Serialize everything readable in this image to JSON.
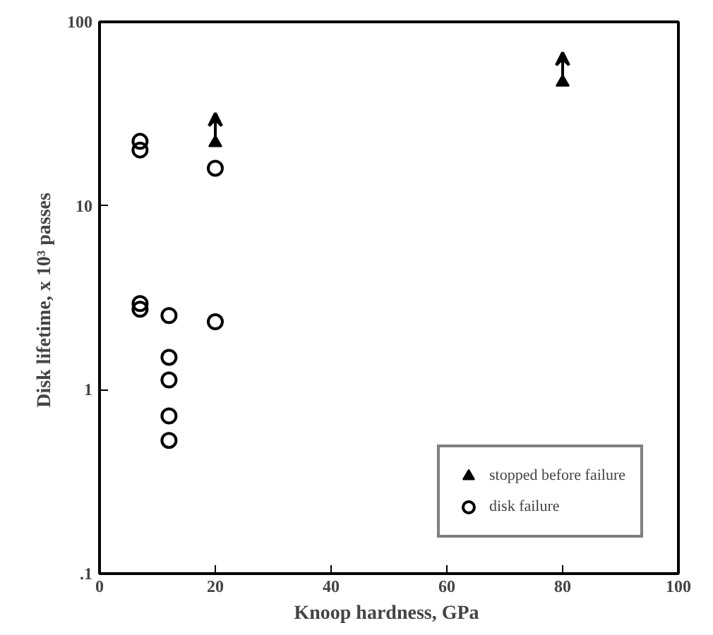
{
  "chart_data": {
    "type": "scatter",
    "xlabel": "Knoop hardness,  GPa",
    "ylabel": "Disk lifetime,  x 10³ passes",
    "xlim": [
      0,
      100
    ],
    "xticks": [
      0,
      20,
      40,
      60,
      80,
      100
    ],
    "ylim": [
      0.1,
      100
    ],
    "yticks": [
      {
        "value": 0.1,
        "label": ".1"
      },
      1,
      10,
      100
    ],
    "log": "y",
    "grid": false,
    "legend": "bottom right",
    "series": [
      {
        "name": "stopped before failure",
        "color": "#000000",
        "marker": "triangle",
        "x": [
          20,
          80
        ],
        "values": [
          22,
          47
        ]
      },
      {
        "name": "disk failure",
        "color": "#000000",
        "marker": "circle",
        "x": [
          7,
          7,
          7,
          7,
          12,
          12,
          12,
          12,
          12,
          20,
          20
        ],
        "values": [
          22.4,
          20.1,
          2.94,
          2.74,
          2.53,
          1.5,
          1.13,
          0.72,
          0.53,
          16,
          2.34
        ]
      }
    ]
  }
}
